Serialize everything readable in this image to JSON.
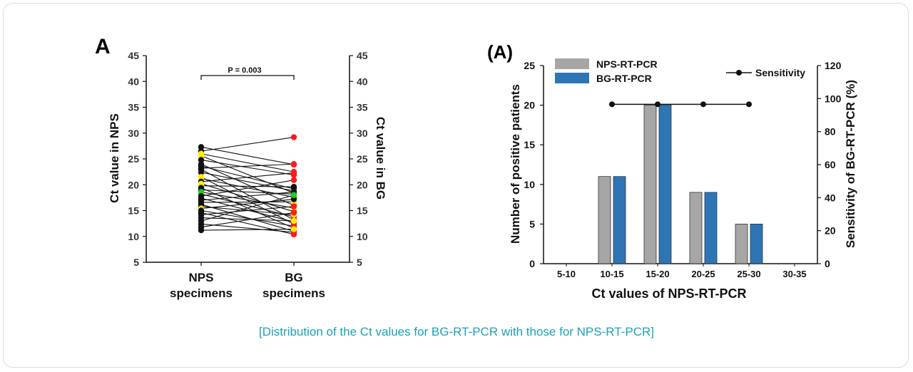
{
  "caption": "[Distribution of the Ct values for BG-RT-PCR with those for NPS-RT-PCR]",
  "colors": {
    "nps_bar": "#a6a6a6",
    "bg_bar": "#2e75b6",
    "caption": "#1aa3b8",
    "dot_red": "#ff1a1a",
    "dot_yellow": "#ffee00",
    "dot_green": "#22cc22",
    "dot_black": "#111111"
  },
  "chart_data": [
    {
      "panel": "A",
      "type": "scatter",
      "ylabel": "Ct value in NPS",
      "y2label": "Ct value in BG",
      "ylim": [
        5,
        45
      ],
      "yticks": [
        5,
        10,
        15,
        20,
        25,
        30,
        35,
        40,
        45
      ],
      "categories": [
        "NPS\nspecimens",
        "BG\nspecimens"
      ],
      "annotation": "P = 0.003",
      "pairs": [
        [
          27.3,
          23.9
        ],
        [
          26.5,
          29.2
        ],
        [
          26.0,
          22.5
        ],
        [
          25.6,
          18.4
        ],
        [
          24.8,
          21.9
        ],
        [
          24.0,
          16.0
        ],
        [
          23.6,
          19.2
        ],
        [
          23.2,
          24.0
        ],
        [
          23.0,
          13.2
        ],
        [
          22.4,
          18.8
        ],
        [
          21.5,
          12.4
        ],
        [
          21.2,
          17.6
        ],
        [
          20.6,
          22.3
        ],
        [
          20.2,
          14.8
        ],
        [
          19.8,
          19.6
        ],
        [
          19.4,
          11.6
        ],
        [
          19.0,
          18.2
        ],
        [
          18.6,
          15.5
        ],
        [
          18.2,
          13.8
        ],
        [
          17.8,
          20.9
        ],
        [
          17.4,
          12.8
        ],
        [
          17.0,
          18.6
        ],
        [
          16.6,
          16.7
        ],
        [
          16.2,
          11.0
        ],
        [
          15.8,
          14.2
        ],
        [
          15.4,
          17.2
        ],
        [
          15.0,
          12.0
        ],
        [
          14.6,
          10.4
        ],
        [
          14.2,
          15.8
        ],
        [
          13.6,
          13.0
        ],
        [
          13.0,
          18.0
        ],
        [
          12.4,
          10.8
        ],
        [
          11.8,
          14.6
        ],
        [
          11.2,
          11.4
        ]
      ],
      "nps_colors": [
        "black",
        "black",
        "yellow",
        "yellow",
        "black",
        "black",
        "black",
        "black",
        "black",
        "black",
        "yellow",
        "yellow",
        "black",
        "yellow",
        "yellow",
        "black",
        "black",
        "green",
        "green",
        "black",
        "black",
        "black",
        "black",
        "black",
        "black",
        "yellow",
        "black",
        "black",
        "black",
        "black",
        "black",
        "black",
        "black",
        "black"
      ],
      "bg_colors": [
        "red",
        "red",
        "red",
        "yellow",
        "red",
        "red",
        "black",
        "red",
        "red",
        "green",
        "red",
        "green",
        "red",
        "red",
        "black",
        "red",
        "green",
        "yellow",
        "red",
        "red",
        "red",
        "black",
        "yellow",
        "red",
        "yellow",
        "black",
        "red",
        "red",
        "red",
        "yellow",
        "green",
        "red",
        "red",
        "yellow"
      ]
    },
    {
      "panel": "(A)",
      "type": "bar",
      "categories": [
        "5-10",
        "10-15",
        "15-20",
        "20-25",
        "25-30",
        "30-35"
      ],
      "series": [
        {
          "name": "NPS-RT-PCR",
          "values": [
            0,
            11,
            20,
            9,
            5,
            0
          ]
        },
        {
          "name": "BG-RT-PCR",
          "values": [
            0,
            11,
            20,
            9,
            5,
            0
          ]
        }
      ],
      "line_series": {
        "name": "Sensitivity",
        "values": [
          null,
          100,
          100,
          100,
          100,
          null
        ]
      },
      "xlabel": "Ct values of NPS-RT-PCR",
      "ylabel": "Number of positive patients",
      "y2label": "Sensitivity of BG-RT-PCR (%)",
      "ylim": [
        0,
        25
      ],
      "yticks": [
        0,
        5,
        10,
        15,
        20,
        25
      ],
      "y2lim": [
        0,
        120
      ],
      "y2ticks": [
        0,
        20,
        40,
        60,
        80,
        100,
        120
      ],
      "legend": "top"
    }
  ]
}
